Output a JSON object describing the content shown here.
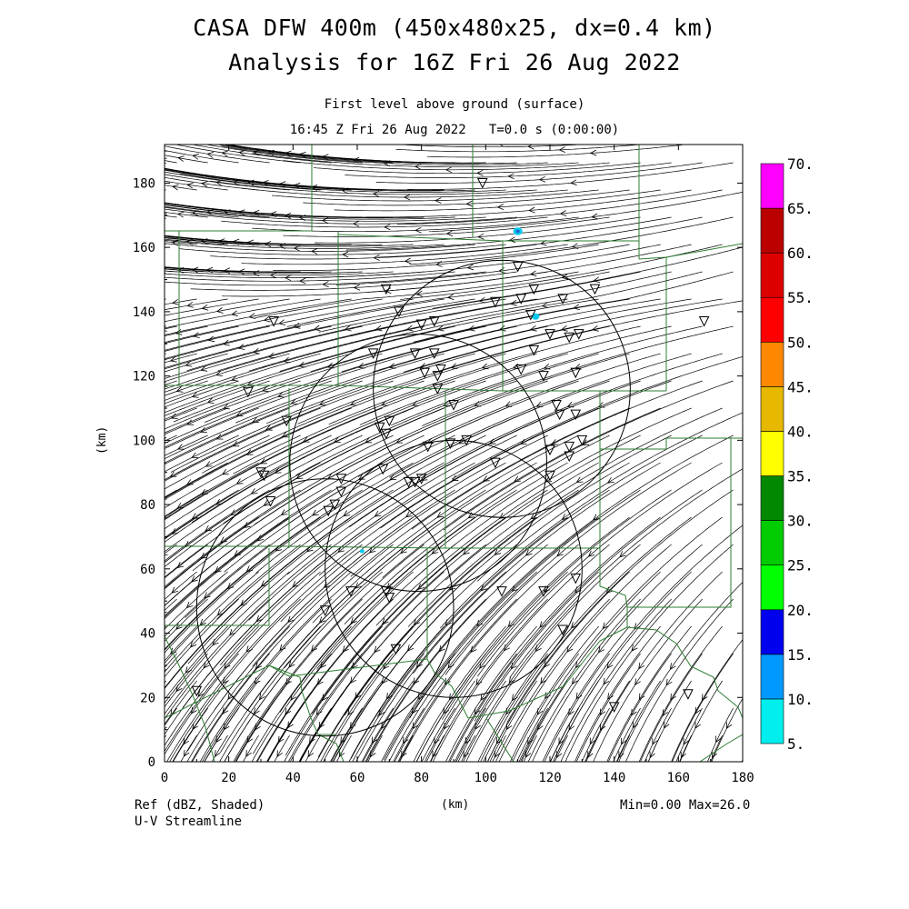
{
  "title": "CASA DFW 400m (450x480x25, dx=0.4 km)",
  "subtitle": "Analysis for 16Z Fri 26 Aug 2022",
  "level": "First level above ground (surface)",
  "time": "16:45 Z Fri 26 Aug 2022   T=0.0 s (0:00:00)",
  "xlabel": "(km)",
  "ylabel": "(km)",
  "field_label": "Ref (dBZ, Shaded)",
  "vector_label": "U-V Streamline",
  "minmax": "Min=0.00 Max=26.0",
  "xrange": [
    0,
    180
  ],
  "yrange": [
    0,
    192
  ],
  "xticks": [
    "0",
    "20",
    "40",
    "60",
    "80",
    "100",
    "120",
    "140",
    "160",
    "180"
  ],
  "yticks": [
    "0",
    "20",
    "40",
    "60",
    "80",
    "100",
    "120",
    "140",
    "160",
    "180"
  ],
  "colorbar": {
    "labels": [
      "5.",
      "10.",
      "15.",
      "20.",
      "25.",
      "30.",
      "35.",
      "40.",
      "45.",
      "50.",
      "55.",
      "60.",
      "65.",
      "70."
    ],
    "colors": [
      "#00eeee",
      "#0099ff",
      "#0000ee",
      "#00ff00",
      "#00cc00",
      "#008800",
      "#ffff00",
      "#e6b800",
      "#ff8800",
      "#ff0000",
      "#dd0000",
      "#bb0000",
      "#ff00ff"
    ]
  },
  "colors": {
    "boundary": "#2e7d32",
    "streamline": "#000000"
  },
  "radars": [
    {
      "center": [
        105,
        116
      ],
      "radius": 40
    },
    {
      "center": [
        79,
        93
      ],
      "radius": 40
    },
    {
      "center": [
        90,
        60
      ],
      "radius": 40
    },
    {
      "center": [
        50,
        48
      ],
      "radius": 40
    }
  ],
  "echoes": [
    {
      "x": 110,
      "y": 165,
      "r": 1.2
    },
    {
      "x": 115.5,
      "y": 138.5,
      "r": 1.0
    },
    {
      "x": 61.5,
      "y": 65.5,
      "r": 0.6
    }
  ],
  "stations": [
    [
      99,
      180
    ],
    [
      110,
      154
    ],
    [
      115,
      147
    ],
    [
      124,
      144
    ],
    [
      134,
      147
    ],
    [
      111,
      144
    ],
    [
      103,
      143
    ],
    [
      114,
      139
    ],
    [
      73,
      140
    ],
    [
      69,
      147
    ],
    [
      84,
      137
    ],
    [
      80,
      136
    ],
    [
      34,
      137
    ],
    [
      168,
      137
    ],
    [
      120,
      133
    ],
    [
      126,
      132
    ],
    [
      129,
      133
    ],
    [
      115,
      128
    ],
    [
      65,
      127
    ],
    [
      78,
      127
    ],
    [
      84,
      127
    ],
    [
      86,
      122
    ],
    [
      81,
      121
    ],
    [
      85,
      120
    ],
    [
      85,
      116
    ],
    [
      90,
      111
    ],
    [
      111,
      122
    ],
    [
      118,
      120
    ],
    [
      128,
      121
    ],
    [
      26,
      115
    ],
    [
      38,
      106
    ],
    [
      67,
      104
    ],
    [
      70,
      106
    ],
    [
      69,
      102
    ],
    [
      82,
      98
    ],
    [
      80,
      88
    ],
    [
      89,
      99
    ],
    [
      94,
      100
    ],
    [
      103,
      93
    ],
    [
      120,
      97
    ],
    [
      126,
      98
    ],
    [
      130,
      100
    ],
    [
      126,
      95
    ],
    [
      120,
      89
    ],
    [
      122,
      111
    ],
    [
      123,
      108
    ],
    [
      128,
      108
    ],
    [
      30,
      90
    ],
    [
      31,
      89
    ],
    [
      33,
      81
    ],
    [
      55,
      88
    ],
    [
      55,
      84
    ],
    [
      53,
      80
    ],
    [
      51,
      78
    ],
    [
      68,
      91
    ],
    [
      76,
      87
    ],
    [
      78,
      87
    ],
    [
      58,
      53
    ],
    [
      69,
      53
    ],
    [
      70,
      51
    ],
    [
      50,
      47
    ],
    [
      105,
      53
    ],
    [
      118,
      53
    ],
    [
      128,
      57
    ],
    [
      124,
      41
    ],
    [
      72,
      35
    ],
    [
      10,
      22
    ],
    [
      140,
      17
    ],
    [
      163,
      21
    ]
  ]
}
